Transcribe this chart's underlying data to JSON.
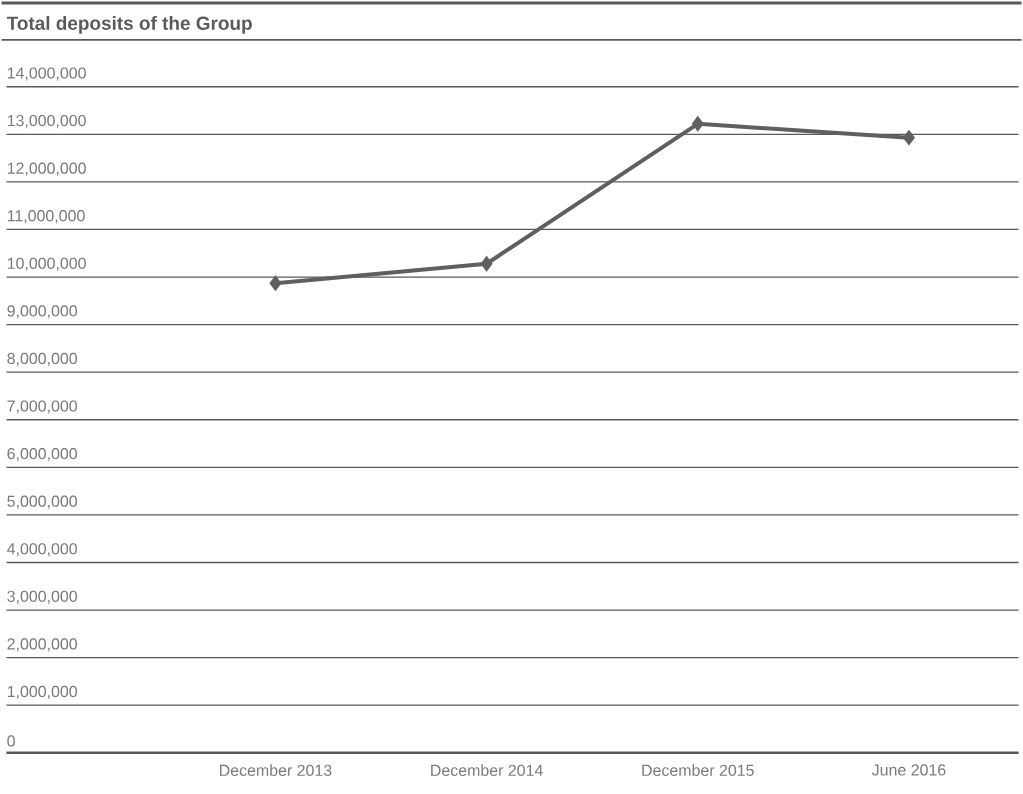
{
  "chart_data": {
    "type": "line",
    "title": "Total deposits of the Group",
    "categories": [
      "December 2013",
      "December 2014",
      "December 2015",
      "June 2016"
    ],
    "values": [
      9870000,
      10280000,
      13220000,
      12930000
    ],
    "color": "#5f5f5f",
    "marker": "diamond",
    "line_style": "solid",
    "grid": "y",
    "ylim": [
      0,
      14000000
    ],
    "yticks": [
      {
        "value": 0,
        "label": "0"
      },
      {
        "value": 1000000,
        "label": "1,000,000"
      },
      {
        "value": 2000000,
        "label": "2,000,000"
      },
      {
        "value": 3000000,
        "label": "3,000,000"
      },
      {
        "value": 4000000,
        "label": "4,000,000"
      },
      {
        "value": 5000000,
        "label": "5,000,000"
      },
      {
        "value": 6000000,
        "label": "6,000,000"
      },
      {
        "value": 7000000,
        "label": "7,000,000"
      },
      {
        "value": 8000000,
        "label": "8,000,000"
      },
      {
        "value": 9000000,
        "label": "9,000,000"
      },
      {
        "value": 10000000,
        "label": "10,000,000"
      },
      {
        "value": 11000000,
        "label": "11,000,000"
      },
      {
        "value": 12000000,
        "label": "12,000,000"
      },
      {
        "value": 13000000,
        "label": "13,000,000"
      },
      {
        "value": 14000000,
        "label": "14,000,000"
      }
    ]
  }
}
